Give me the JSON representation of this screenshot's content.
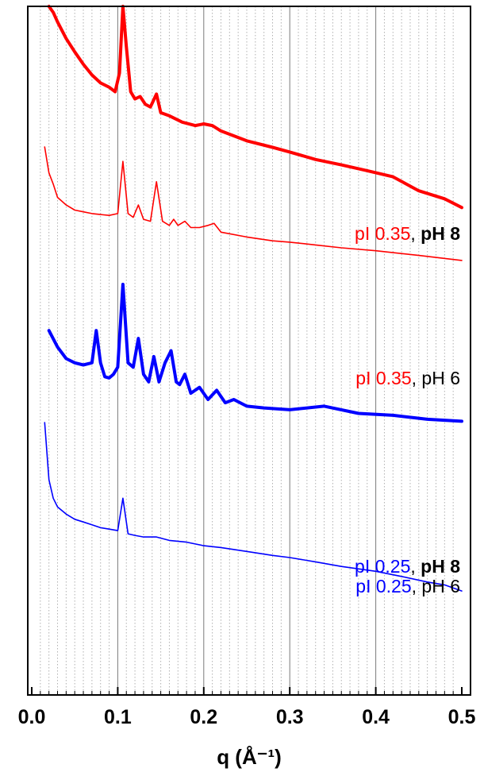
{
  "chart_data": {
    "type": "line",
    "xlabel": "q (Å⁻¹)",
    "ylabel": "",
    "xlim": [
      0.0,
      0.5
    ],
    "y_scale": "log",
    "y_ticks_shown": false,
    "xticks": [
      "0.0",
      "0.1",
      "0.2",
      "0.3",
      "0.4",
      "0.5"
    ],
    "grid": {
      "major_x": true,
      "minor_x": true,
      "y": false
    },
    "annotations": [
      {
        "text": "pI 0.25, pH 6",
        "x": 0.5,
        "series": "pI 0.25, pH 6"
      }
    ],
    "series": [
      {
        "name": "pI 0.35, pH 8",
        "label_prefix": "pI 0.35",
        "label_suffix": "pH 8",
        "suffix_bold": true,
        "color": "#ff0000",
        "stroke": "thick",
        "x": [
          0.02,
          0.025,
          0.03,
          0.04,
          0.05,
          0.06,
          0.07,
          0.08,
          0.09,
          0.097,
          0.102,
          0.106,
          0.11,
          0.115,
          0.12,
          0.126,
          0.132,
          0.138,
          0.145,
          0.15,
          0.16,
          0.175,
          0.19,
          0.2,
          0.21,
          0.22,
          0.25,
          0.28,
          0.3,
          0.33,
          0.36,
          0.39,
          0.42,
          0.45,
          0.48,
          0.5
        ],
        "y": [
          1.0,
          0.93,
          0.83,
          0.68,
          0.58,
          0.5,
          0.44,
          0.4,
          0.38,
          0.36,
          0.45,
          1.0,
          0.62,
          0.36,
          0.33,
          0.34,
          0.31,
          0.3,
          0.35,
          0.28,
          0.27,
          0.25,
          0.24,
          0.245,
          0.24,
          0.225,
          0.2,
          0.185,
          0.175,
          0.16,
          0.15,
          0.14,
          0.13,
          0.11,
          0.1,
          0.09
        ]
      },
      {
        "name": "pI 0.35, pH 6",
        "label_prefix": "pI 0.35",
        "label_suffix": "pH 6",
        "suffix_bold": false,
        "color": "#ff0000",
        "stroke": "thin",
        "x": [
          0.015,
          0.02,
          0.025,
          0.03,
          0.04,
          0.05,
          0.06,
          0.07,
          0.08,
          0.09,
          0.1,
          0.106,
          0.112,
          0.118,
          0.124,
          0.13,
          0.138,
          0.145,
          0.152,
          0.16,
          0.165,
          0.17,
          0.178,
          0.185,
          0.195,
          0.205,
          0.212,
          0.22,
          0.25,
          0.28,
          0.3,
          0.33,
          0.36,
          0.4,
          0.45,
          0.5
        ],
        "y": [
          1.0,
          0.7,
          0.6,
          0.5,
          0.45,
          0.42,
          0.41,
          0.4,
          0.395,
          0.39,
          0.4,
          0.82,
          0.4,
          0.38,
          0.45,
          0.37,
          0.36,
          0.62,
          0.36,
          0.34,
          0.37,
          0.34,
          0.36,
          0.33,
          0.33,
          0.34,
          0.35,
          0.31,
          0.29,
          0.275,
          0.27,
          0.26,
          0.25,
          0.24,
          0.225,
          0.21
        ]
      },
      {
        "name": "pI 0.25, pH 8",
        "label_prefix": "pI 0.25",
        "label_suffix": "pH 8",
        "suffix_bold": true,
        "color": "#0000ff",
        "stroke": "thick",
        "x": [
          0.02,
          0.03,
          0.04,
          0.05,
          0.06,
          0.07,
          0.075,
          0.08,
          0.085,
          0.09,
          0.095,
          0.1,
          0.106,
          0.112,
          0.118,
          0.124,
          0.13,
          0.136,
          0.142,
          0.148,
          0.155,
          0.162,
          0.168,
          0.172,
          0.178,
          0.185,
          0.195,
          0.205,
          0.215,
          0.225,
          0.235,
          0.25,
          0.27,
          0.3,
          0.34,
          0.38,
          0.42,
          0.46,
          0.5
        ],
        "y": [
          0.6,
          0.5,
          0.44,
          0.42,
          0.41,
          0.42,
          0.6,
          0.42,
          0.36,
          0.355,
          0.37,
          0.4,
          1.0,
          0.42,
          0.4,
          0.55,
          0.37,
          0.34,
          0.45,
          0.34,
          0.42,
          0.48,
          0.34,
          0.33,
          0.37,
          0.3,
          0.32,
          0.28,
          0.31,
          0.27,
          0.28,
          0.26,
          0.255,
          0.25,
          0.26,
          0.24,
          0.235,
          0.225,
          0.22
        ]
      },
      {
        "name": "pI 0.25, pH 6",
        "label_prefix": "pI 0.25",
        "label_suffix": "pH 6",
        "suffix_bold": false,
        "color": "#0000ff",
        "stroke": "thin",
        "x": [
          0.015,
          0.02,
          0.025,
          0.03,
          0.04,
          0.05,
          0.06,
          0.07,
          0.08,
          0.09,
          0.1,
          0.106,
          0.112,
          0.12,
          0.13,
          0.145,
          0.16,
          0.18,
          0.2,
          0.22,
          0.25,
          0.28,
          0.3,
          0.33,
          0.36,
          0.4,
          0.43,
          0.46,
          0.48,
          0.5
        ],
        "y": [
          1.0,
          0.5,
          0.4,
          0.36,
          0.33,
          0.31,
          0.3,
          0.29,
          0.28,
          0.275,
          0.27,
          0.4,
          0.26,
          0.255,
          0.25,
          0.25,
          0.24,
          0.235,
          0.225,
          0.22,
          0.21,
          0.2,
          0.195,
          0.185,
          0.175,
          0.165,
          0.155,
          0.145,
          0.14,
          0.13
        ]
      }
    ]
  }
}
